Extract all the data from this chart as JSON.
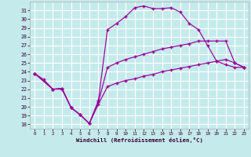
{
  "xlabel": "Windchill (Refroidissement éolien,°C)",
  "bg_color": "#c5eaec",
  "line_color": "#990099",
  "grid_color": "#ffffff",
  "xlim": [
    -0.5,
    23.5
  ],
  "ylim": [
    17.5,
    32.0
  ],
  "yticks": [
    18,
    19,
    20,
    21,
    22,
    23,
    24,
    25,
    26,
    27,
    28,
    29,
    30,
    31
  ],
  "xticks": [
    0,
    1,
    2,
    3,
    4,
    5,
    6,
    7,
    8,
    9,
    10,
    11,
    12,
    13,
    14,
    15,
    16,
    17,
    18,
    19,
    20,
    21,
    22,
    23
  ],
  "line1_x": [
    0,
    1,
    2,
    3,
    4,
    5,
    6,
    7,
    8,
    9,
    10,
    11,
    12,
    13,
    14,
    15,
    16,
    17,
    18,
    19,
    20,
    21,
    22,
    23
  ],
  "line1_y": [
    23.8,
    23.1,
    22.0,
    22.1,
    19.9,
    19.1,
    18.1,
    20.7,
    28.8,
    29.5,
    30.3,
    31.3,
    31.5,
    31.2,
    31.2,
    31.3,
    30.8,
    29.5,
    28.8,
    27.0,
    25.2,
    24.8,
    24.5,
    24.5
  ],
  "line2_x": [
    0,
    2,
    3,
    4,
    5,
    6,
    7,
    8,
    9,
    10,
    11,
    12,
    13,
    14,
    15,
    16,
    17,
    18,
    19,
    20,
    21,
    22,
    23
  ],
  "line2_y": [
    23.8,
    22.0,
    22.1,
    19.9,
    19.1,
    18.1,
    20.5,
    24.5,
    25.0,
    25.4,
    25.7,
    26.0,
    26.3,
    26.6,
    26.8,
    27.0,
    27.2,
    27.5,
    27.5,
    27.5,
    27.5,
    25.0,
    24.5
  ],
  "line3_x": [
    0,
    2,
    3,
    4,
    5,
    6,
    7,
    8,
    9,
    10,
    11,
    12,
    13,
    14,
    15,
    16,
    17,
    18,
    19,
    20,
    21,
    22,
    23
  ],
  "line3_y": [
    23.8,
    22.0,
    22.0,
    19.9,
    19.1,
    18.1,
    20.3,
    22.3,
    22.7,
    23.0,
    23.2,
    23.5,
    23.7,
    24.0,
    24.2,
    24.4,
    24.6,
    24.8,
    25.0,
    25.2,
    25.4,
    25.0,
    24.5
  ]
}
